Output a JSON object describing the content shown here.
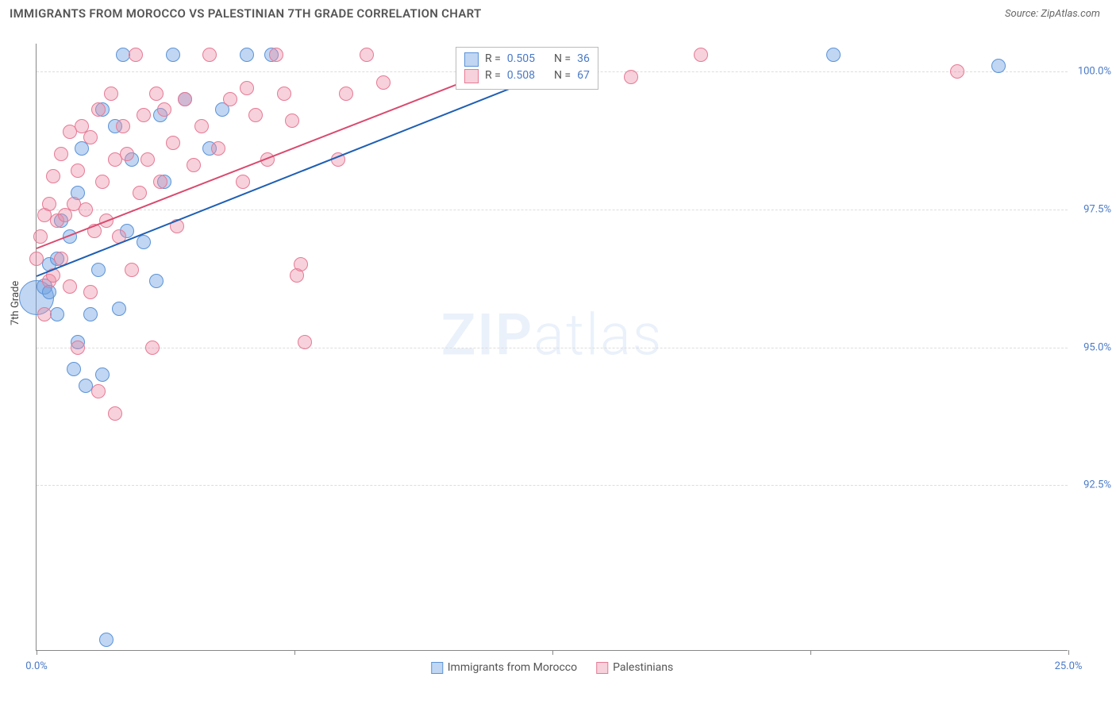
{
  "header": {
    "title": "IMMIGRANTS FROM MOROCCO VS PALESTINIAN 7TH GRADE CORRELATION CHART",
    "source": "Source: ZipAtlas.com"
  },
  "watermark": {
    "zip": "ZIP",
    "atlas": "atlas"
  },
  "chart": {
    "type": "scatter",
    "y_axis_label": "7th Grade",
    "x_range": [
      0,
      25
    ],
    "y_range": [
      89.5,
      100.5
    ],
    "x_ticks": [
      {
        "v": 0,
        "label": "0.0%"
      },
      {
        "v": 6.25,
        "label": ""
      },
      {
        "v": 12.5,
        "label": ""
      },
      {
        "v": 18.75,
        "label": ""
      },
      {
        "v": 25,
        "label": "25.0%"
      }
    ],
    "y_ticks": [
      {
        "v": 92.5,
        "label": "92.5%"
      },
      {
        "v": 95.0,
        "label": "95.0%"
      },
      {
        "v": 97.5,
        "label": "97.5%"
      },
      {
        "v": 100.0,
        "label": "100.0%"
      }
    ],
    "grid_color": "#dddddd",
    "background": "#ffffff",
    "series": [
      {
        "name": "Immigrants from Morocco",
        "fill": "rgba(116,165,226,0.45)",
        "stroke": "#5b93d8",
        "line_color": "#1e5fb3",
        "R": "0.505",
        "N": "36",
        "trend": {
          "x1": 0.0,
          "y1": 96.3,
          "x2": 13.5,
          "y2": 100.3
        },
        "points": [
          {
            "x": 0.0,
            "y": 95.9,
            "r": 22
          },
          {
            "x": 0.2,
            "y": 96.1,
            "r": 10
          },
          {
            "x": 0.3,
            "y": 96.5,
            "r": 9
          },
          {
            "x": 0.3,
            "y": 96.0,
            "r": 9
          },
          {
            "x": 0.5,
            "y": 96.6,
            "r": 9
          },
          {
            "x": 0.5,
            "y": 95.6,
            "r": 9
          },
          {
            "x": 0.6,
            "y": 97.3,
            "r": 9
          },
          {
            "x": 0.8,
            "y": 97.0,
            "r": 9
          },
          {
            "x": 0.9,
            "y": 94.6,
            "r": 9
          },
          {
            "x": 1.0,
            "y": 95.1,
            "r": 9
          },
          {
            "x": 1.0,
            "y": 97.8,
            "r": 9
          },
          {
            "x": 1.1,
            "y": 98.6,
            "r": 9
          },
          {
            "x": 1.2,
            "y": 94.3,
            "r": 9
          },
          {
            "x": 1.3,
            "y": 95.6,
            "r": 9
          },
          {
            "x": 1.5,
            "y": 96.4,
            "r": 9
          },
          {
            "x": 1.6,
            "y": 94.5,
            "r": 9
          },
          {
            "x": 1.6,
            "y": 99.3,
            "r": 9
          },
          {
            "x": 1.7,
            "y": 89.7,
            "r": 9
          },
          {
            "x": 1.9,
            "y": 99.0,
            "r": 9
          },
          {
            "x": 2.0,
            "y": 95.7,
            "r": 9
          },
          {
            "x": 2.1,
            "y": 100.3,
            "r": 9
          },
          {
            "x": 2.2,
            "y": 97.1,
            "r": 9
          },
          {
            "x": 2.3,
            "y": 98.4,
            "r": 9
          },
          {
            "x": 2.6,
            "y": 96.9,
            "r": 9
          },
          {
            "x": 2.9,
            "y": 96.2,
            "r": 9
          },
          {
            "x": 3.0,
            "y": 99.2,
            "r": 9
          },
          {
            "x": 3.1,
            "y": 98.0,
            "r": 9
          },
          {
            "x": 3.3,
            "y": 100.3,
            "r": 9
          },
          {
            "x": 3.6,
            "y": 99.5,
            "r": 9
          },
          {
            "x": 4.2,
            "y": 98.6,
            "r": 9
          },
          {
            "x": 4.5,
            "y": 99.3,
            "r": 9
          },
          {
            "x": 5.1,
            "y": 100.3,
            "r": 9
          },
          {
            "x": 5.7,
            "y": 100.3,
            "r": 9
          },
          {
            "x": 12.8,
            "y": 100.3,
            "r": 9
          },
          {
            "x": 19.3,
            "y": 100.3,
            "r": 9
          },
          {
            "x": 23.3,
            "y": 100.1,
            "r": 9
          }
        ]
      },
      {
        "name": "Palestinians",
        "fill": "rgba(236,140,165,0.40)",
        "stroke": "#e67a95",
        "line_color": "#d94a6e",
        "R": "0.508",
        "N": "67",
        "trend": {
          "x1": 0.0,
          "y1": 96.8,
          "x2": 12.0,
          "y2": 100.3
        },
        "points": [
          {
            "x": 0.0,
            "y": 96.6,
            "r": 9
          },
          {
            "x": 0.1,
            "y": 97.0,
            "r": 9
          },
          {
            "x": 0.2,
            "y": 95.6,
            "r": 9
          },
          {
            "x": 0.2,
            "y": 97.4,
            "r": 9
          },
          {
            "x": 0.3,
            "y": 96.2,
            "r": 9
          },
          {
            "x": 0.3,
            "y": 97.6,
            "r": 9
          },
          {
            "x": 0.4,
            "y": 98.1,
            "r": 9
          },
          {
            "x": 0.4,
            "y": 96.3,
            "r": 9
          },
          {
            "x": 0.5,
            "y": 97.3,
            "r": 9
          },
          {
            "x": 0.6,
            "y": 98.5,
            "r": 9
          },
          {
            "x": 0.6,
            "y": 96.6,
            "r": 9
          },
          {
            "x": 0.7,
            "y": 97.4,
            "r": 9
          },
          {
            "x": 0.8,
            "y": 98.9,
            "r": 9
          },
          {
            "x": 0.8,
            "y": 96.1,
            "r": 9
          },
          {
            "x": 0.9,
            "y": 97.6,
            "r": 9
          },
          {
            "x": 1.0,
            "y": 98.2,
            "r": 9
          },
          {
            "x": 1.0,
            "y": 95.0,
            "r": 9
          },
          {
            "x": 1.1,
            "y": 99.0,
            "r": 9
          },
          {
            "x": 1.2,
            "y": 97.5,
            "r": 9
          },
          {
            "x": 1.3,
            "y": 98.8,
            "r": 9
          },
          {
            "x": 1.3,
            "y": 96.0,
            "r": 9
          },
          {
            "x": 1.4,
            "y": 97.1,
            "r": 9
          },
          {
            "x": 1.5,
            "y": 99.3,
            "r": 9
          },
          {
            "x": 1.5,
            "y": 94.2,
            "r": 9
          },
          {
            "x": 1.6,
            "y": 98.0,
            "r": 9
          },
          {
            "x": 1.7,
            "y": 97.3,
            "r": 9
          },
          {
            "x": 1.8,
            "y": 99.6,
            "r": 9
          },
          {
            "x": 1.9,
            "y": 98.4,
            "r": 9
          },
          {
            "x": 1.9,
            "y": 93.8,
            "r": 9
          },
          {
            "x": 2.0,
            "y": 97.0,
            "r": 9
          },
          {
            "x": 2.1,
            "y": 99.0,
            "r": 9
          },
          {
            "x": 2.2,
            "y": 98.5,
            "r": 9
          },
          {
            "x": 2.3,
            "y": 96.4,
            "r": 9
          },
          {
            "x": 2.4,
            "y": 100.3,
            "r": 9
          },
          {
            "x": 2.5,
            "y": 97.8,
            "r": 9
          },
          {
            "x": 2.6,
            "y": 99.2,
            "r": 9
          },
          {
            "x": 2.7,
            "y": 98.4,
            "r": 9
          },
          {
            "x": 2.8,
            "y": 95.0,
            "r": 9
          },
          {
            "x": 2.9,
            "y": 99.6,
            "r": 9
          },
          {
            "x": 3.0,
            "y": 98.0,
            "r": 9
          },
          {
            "x": 3.1,
            "y": 99.3,
            "r": 9
          },
          {
            "x": 3.3,
            "y": 98.7,
            "r": 9
          },
          {
            "x": 3.4,
            "y": 97.2,
            "r": 9
          },
          {
            "x": 3.6,
            "y": 99.5,
            "r": 9
          },
          {
            "x": 3.8,
            "y": 98.3,
            "r": 9
          },
          {
            "x": 4.0,
            "y": 99.0,
            "r": 9
          },
          {
            "x": 4.2,
            "y": 100.3,
            "r": 9
          },
          {
            "x": 4.4,
            "y": 98.6,
            "r": 9
          },
          {
            "x": 4.7,
            "y": 99.5,
            "r": 9
          },
          {
            "x": 5.0,
            "y": 98.0,
            "r": 9
          },
          {
            "x": 5.1,
            "y": 99.7,
            "r": 9
          },
          {
            "x": 5.3,
            "y": 99.2,
            "r": 9
          },
          {
            "x": 5.6,
            "y": 98.4,
            "r": 9
          },
          {
            "x": 5.8,
            "y": 100.3,
            "r": 9
          },
          {
            "x": 6.0,
            "y": 99.6,
            "r": 9
          },
          {
            "x": 6.2,
            "y": 99.1,
            "r": 9
          },
          {
            "x": 6.3,
            "y": 96.3,
            "r": 9
          },
          {
            "x": 6.4,
            "y": 96.5,
            "r": 9
          },
          {
            "x": 6.5,
            "y": 95.1,
            "r": 9
          },
          {
            "x": 7.3,
            "y": 98.4,
            "r": 9
          },
          {
            "x": 7.5,
            "y": 99.6,
            "r": 9
          },
          {
            "x": 8.0,
            "y": 100.3,
            "r": 9
          },
          {
            "x": 8.4,
            "y": 99.8,
            "r": 9
          },
          {
            "x": 10.4,
            "y": 100.3,
            "r": 9
          },
          {
            "x": 14.4,
            "y": 99.9,
            "r": 9
          },
          {
            "x": 16.1,
            "y": 100.3,
            "r": 9
          },
          {
            "x": 22.3,
            "y": 100.0,
            "r": 9
          }
        ]
      }
    ],
    "legend": {
      "R_label": "R =",
      "N_label": "N ="
    },
    "bottom_legend": [
      {
        "label": "Immigrants from Morocco",
        "fill": "rgba(116,165,226,0.45)",
        "stroke": "#5b93d8"
      },
      {
        "label": "Palestinians",
        "fill": "rgba(236,140,165,0.40)",
        "stroke": "#e67a95"
      }
    ]
  }
}
